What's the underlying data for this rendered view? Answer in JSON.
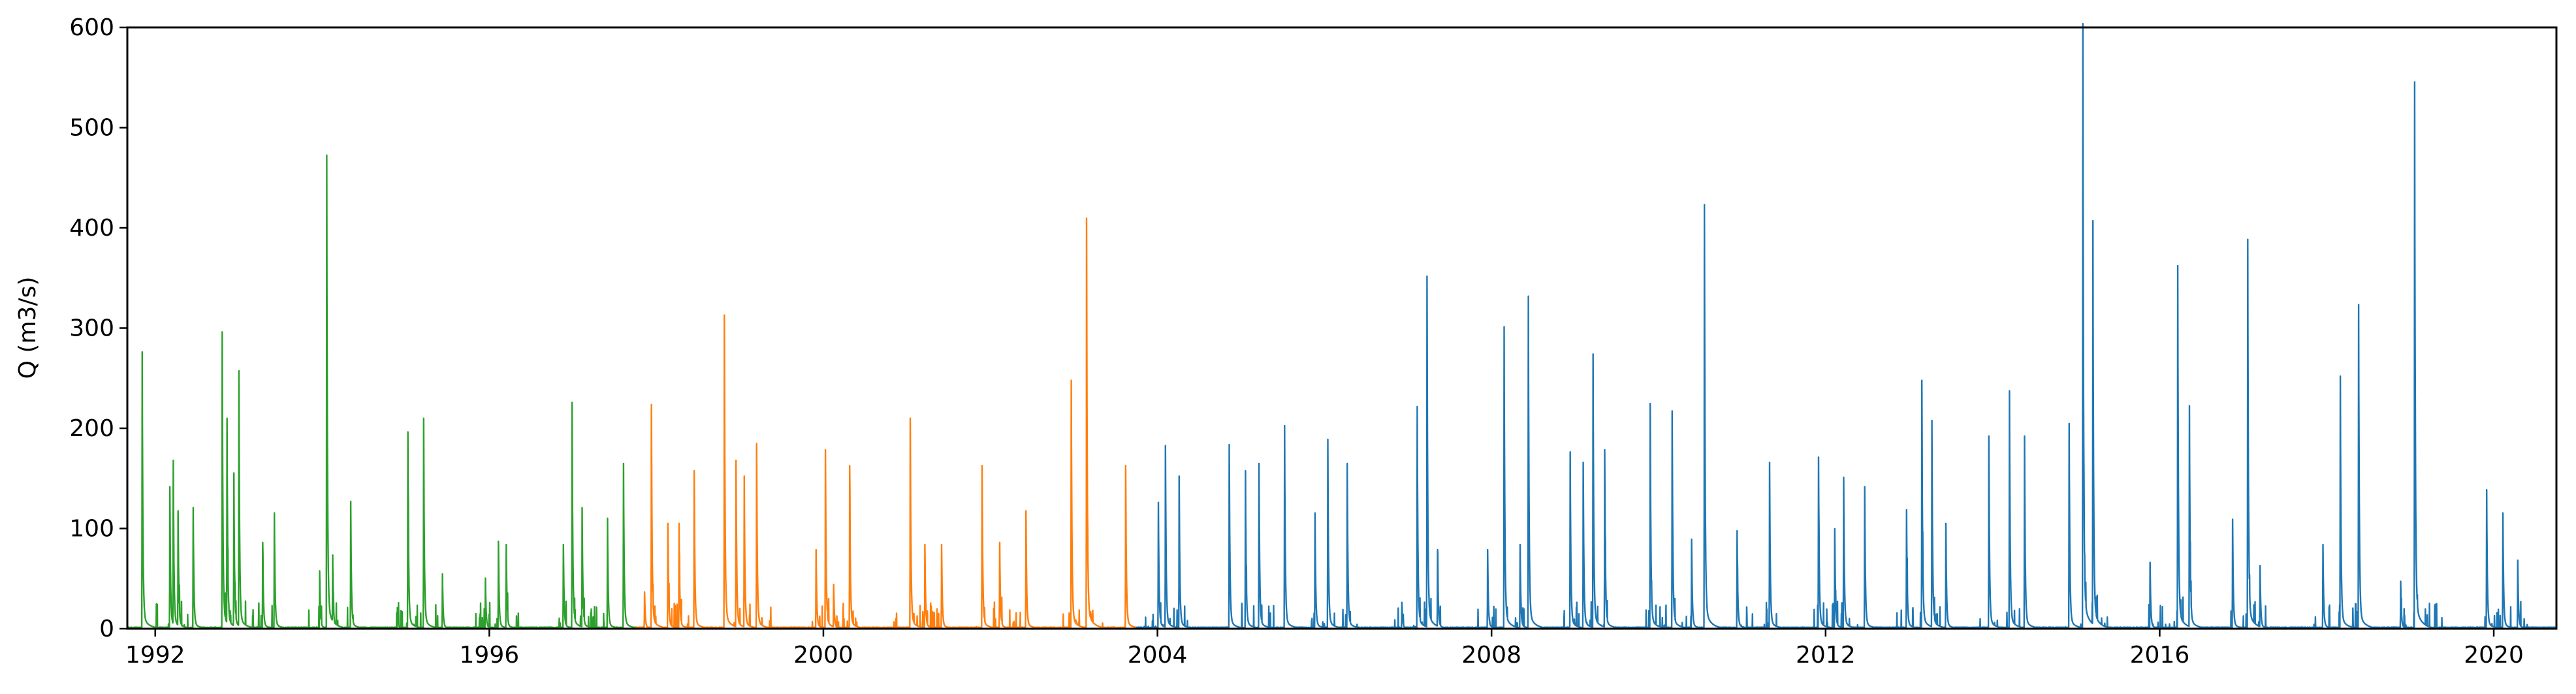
{
  "chart_data": {
    "type": "line",
    "title": "",
    "xlabel": "",
    "ylabel": "Q (m3/s)",
    "xlim": [
      "1991-09-01",
      "2020-10-01"
    ],
    "ylim": [
      0,
      600
    ],
    "x_ticks": [
      "1992",
      "1996",
      "2000",
      "2004",
      "2008",
      "2012",
      "2016",
      "2020"
    ],
    "y_ticks": [
      "0",
      "100",
      "200",
      "300",
      "400",
      "500",
      "600"
    ],
    "grid": false,
    "legend": "none",
    "series": [
      {
        "color": "#2ca02c",
        "period": [
          "1991-09-01",
          "1997-09-30"
        ],
        "peaks": [
          [
            "1991-11-05",
            263
          ],
          [
            "1992-03-05",
            135
          ],
          [
            "1992-03-20",
            160
          ],
          [
            "1992-04-10",
            112
          ],
          [
            "1992-06-15",
            115
          ],
          [
            "1992-10-20",
            282
          ],
          [
            "1992-11-10",
            200
          ],
          [
            "1992-12-10",
            148
          ],
          [
            "1993-01-01",
            245
          ],
          [
            "1993-04-15",
            82
          ],
          [
            "1993-06-05",
            110
          ],
          [
            "1993-12-20",
            55
          ],
          [
            "1994-01-20",
            450
          ],
          [
            "1994-02-15",
            70
          ],
          [
            "1994-05-05",
            121
          ],
          [
            "1994-11-25",
            20
          ],
          [
            "1995-01-10",
            187
          ],
          [
            "1995-03-20",
            200
          ],
          [
            "1995-06-10",
            52
          ],
          [
            "1995-12-15",
            48
          ],
          [
            "1996-02-10",
            83
          ],
          [
            "1996-03-15",
            80
          ],
          [
            "1996-11-20",
            80
          ],
          [
            "1996-12-28",
            215
          ],
          [
            "1997-02-10",
            115
          ],
          [
            "1997-06-01",
            105
          ],
          [
            "1997-08-10",
            157
          ]
        ]
      },
      {
        "color": "#ff7f0e",
        "period": [
          "1997-10-01",
          "2003-09-30"
        ],
        "peaks": [
          [
            "1997-11-10",
            35
          ],
          [
            "1997-12-10",
            213
          ],
          [
            "1998-02-20",
            100
          ],
          [
            "1998-04-10",
            100
          ],
          [
            "1998-06-15",
            150
          ],
          [
            "1998-10-25",
            298
          ],
          [
            "1998-12-15",
            160
          ],
          [
            "1999-01-20",
            145
          ],
          [
            "1999-03-15",
            176
          ],
          [
            "1999-11-30",
            75
          ],
          [
            "2000-01-10",
            170
          ],
          [
            "2000-02-15",
            42
          ],
          [
            "2000-04-25",
            155
          ],
          [
            "2001-01-15",
            200
          ],
          [
            "2001-03-20",
            80
          ],
          [
            "2001-06-01",
            80
          ],
          [
            "2001-11-25",
            155
          ],
          [
            "2002-02-10",
            82
          ],
          [
            "2002-06-05",
            112
          ],
          [
            "2002-12-20",
            236
          ],
          [
            "2003-02-25",
            390
          ],
          [
            "2003-08-15",
            155
          ]
        ]
      },
      {
        "color": "#1f77b4",
        "period": [
          "2003-10-01",
          "2020-09-30"
        ],
        "peaks": [
          [
            "2004-01-05",
            120
          ],
          [
            "2004-02-05",
            174
          ],
          [
            "2004-04-05",
            145
          ],
          [
            "2004-11-10",
            175
          ],
          [
            "2005-01-20",
            150
          ],
          [
            "2005-03-20",
            157
          ],
          [
            "2005-07-10",
            193
          ],
          [
            "2005-11-20",
            110
          ],
          [
            "2006-01-15",
            180
          ],
          [
            "2006-04-10",
            157
          ],
          [
            "2006-12-05",
            25
          ],
          [
            "2007-02-10",
            211
          ],
          [
            "2007-03-25",
            335
          ],
          [
            "2007-05-10",
            75
          ],
          [
            "2007-12-15",
            75
          ],
          [
            "2008-02-25",
            287
          ],
          [
            "2008-05-05",
            80
          ],
          [
            "2008-06-10",
            316
          ],
          [
            "2008-12-10",
            168
          ],
          [
            "2009-02-05",
            158
          ],
          [
            "2009-03-20",
            261
          ],
          [
            "2009-05-10",
            170
          ],
          [
            "2009-11-25",
            214
          ],
          [
            "2010-03-01",
            207
          ],
          [
            "2010-05-25",
            85
          ],
          [
            "2010-07-20",
            403
          ],
          [
            "2010-12-10",
            93
          ],
          [
            "2011-05-01",
            158
          ],
          [
            "2011-12-01",
            163
          ],
          [
            "2012-02-10",
            95
          ],
          [
            "2012-03-20",
            143
          ],
          [
            "2012-06-20",
            135
          ],
          [
            "2012-12-20",
            113
          ],
          [
            "2013-02-25",
            236
          ],
          [
            "2013-04-10",
            198
          ],
          [
            "2013-06-10",
            100
          ],
          [
            "2013-12-15",
            183
          ],
          [
            "2014-03-15",
            226
          ],
          [
            "2014-05-20",
            183
          ],
          [
            "2014-12-01",
            195
          ],
          [
            "2015-01-30",
            575
          ],
          [
            "2015-03-15",
            382
          ],
          [
            "2015-11-20",
            63
          ],
          [
            "2016-03-20",
            345
          ],
          [
            "2016-05-10",
            212
          ],
          [
            "2016-11-15",
            104
          ],
          [
            "2017-01-20",
            370
          ],
          [
            "2017-03-15",
            60
          ],
          [
            "2017-12-15",
            80
          ],
          [
            "2018-03-01",
            240
          ],
          [
            "2018-05-20",
            308
          ],
          [
            "2018-11-20",
            45
          ],
          [
            "2019-01-20",
            510
          ],
          [
            "2019-12-01",
            132
          ],
          [
            "2020-02-10",
            110
          ],
          [
            "2020-04-15",
            65
          ]
        ]
      }
    ]
  }
}
